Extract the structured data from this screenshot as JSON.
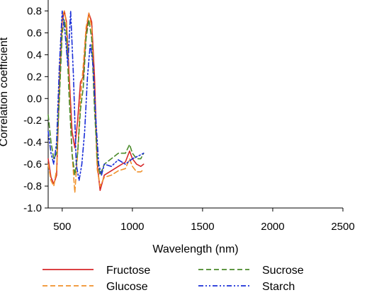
{
  "chart_data": {
    "type": "line",
    "xlabel": "Wavelength (nm)",
    "ylabel": "Correlation coefficient",
    "xlim": [
      400,
      2500
    ],
    "ylim": [
      -1.0,
      0.9
    ],
    "x_ticks": [
      "500",
      "1000",
      "1500",
      "2000",
      "2500"
    ],
    "y_ticks": [
      "-1.0",
      "-0.8",
      "-0.6",
      "-0.4",
      "-0.2",
      "0.0",
      "0.2",
      "0.4",
      "0.6",
      "0.8"
    ],
    "grid": false,
    "legend_position": "bottom",
    "series": [
      {
        "name": "Fructose",
        "color": "#d62728",
        "dash": "solid",
        "points": [
          [
            400,
            -0.55
          ],
          [
            420,
            -0.72
          ],
          [
            440,
            -0.78
          ],
          [
            460,
            -0.7
          ],
          [
            480,
            0.1
          ],
          [
            500,
            0.7
          ],
          [
            515,
            0.8
          ],
          [
            530,
            0.7
          ],
          [
            550,
            0.2
          ],
          [
            570,
            -0.3
          ],
          [
            590,
            -0.45
          ],
          [
            610,
            -0.2
          ],
          [
            630,
            0.15
          ],
          [
            650,
            0.2
          ],
          [
            670,
            0.6
          ],
          [
            690,
            0.78
          ],
          [
            710,
            0.7
          ],
          [
            730,
            0.2
          ],
          [
            750,
            -0.6
          ],
          [
            770,
            -0.84
          ],
          [
            800,
            -0.7
          ],
          [
            850,
            -0.66
          ],
          [
            900,
            -0.62
          ],
          [
            950,
            -0.58
          ],
          [
            980,
            -0.48
          ],
          [
            1000,
            -0.55
          ],
          [
            1030,
            -0.6
          ],
          [
            1060,
            -0.62
          ],
          [
            1080,
            -0.6
          ]
        ]
      },
      {
        "name": "Glucose",
        "color": "#f0912a",
        "dash": "dashed",
        "points": [
          [
            400,
            -0.6
          ],
          [
            420,
            -0.75
          ],
          [
            440,
            -0.8
          ],
          [
            460,
            -0.65
          ],
          [
            480,
            0.2
          ],
          [
            500,
            0.75
          ],
          [
            515,
            0.8
          ],
          [
            530,
            0.68
          ],
          [
            550,
            0.1
          ],
          [
            570,
            -0.5
          ],
          [
            590,
            -0.86
          ],
          [
            610,
            -0.5
          ],
          [
            630,
            0.0
          ],
          [
            650,
            0.3
          ],
          [
            670,
            0.65
          ],
          [
            690,
            0.78
          ],
          [
            710,
            0.65
          ],
          [
            730,
            0.0
          ],
          [
            750,
            -0.65
          ],
          [
            770,
            -0.8
          ],
          [
            800,
            -0.72
          ],
          [
            850,
            -0.7
          ],
          [
            900,
            -0.66
          ],
          [
            950,
            -0.64
          ],
          [
            980,
            -0.55
          ],
          [
            1000,
            -0.62
          ],
          [
            1030,
            -0.67
          ],
          [
            1060,
            -0.67
          ],
          [
            1080,
            -0.65
          ]
        ]
      },
      {
        "name": "Sucrose",
        "color": "#4a8a2a",
        "dash": "dashed",
        "points": [
          [
            400,
            -0.15
          ],
          [
            420,
            -0.4
          ],
          [
            440,
            -0.55
          ],
          [
            460,
            -0.5
          ],
          [
            480,
            0.0
          ],
          [
            500,
            0.6
          ],
          [
            515,
            0.72
          ],
          [
            530,
            0.6
          ],
          [
            550,
            0.0
          ],
          [
            570,
            -0.5
          ],
          [
            590,
            -0.7
          ],
          [
            610,
            -0.5
          ],
          [
            630,
            -0.1
          ],
          [
            650,
            0.1
          ],
          [
            670,
            0.55
          ],
          [
            690,
            0.72
          ],
          [
            710,
            0.55
          ],
          [
            730,
            -0.1
          ],
          [
            750,
            -0.55
          ],
          [
            770,
            -0.7
          ],
          [
            800,
            -0.6
          ],
          [
            850,
            -0.55
          ],
          [
            900,
            -0.5
          ],
          [
            950,
            -0.5
          ],
          [
            980,
            -0.42
          ],
          [
            1000,
            -0.5
          ],
          [
            1030,
            -0.55
          ],
          [
            1060,
            -0.55
          ],
          [
            1080,
            -0.5
          ]
        ]
      },
      {
        "name": "Starch",
        "color": "#1a2ed8",
        "dash": "dashdotdot",
        "points": [
          [
            400,
            -0.3
          ],
          [
            420,
            -0.5
          ],
          [
            440,
            -0.6
          ],
          [
            460,
            -0.4
          ],
          [
            480,
            0.3
          ],
          [
            500,
            0.8
          ],
          [
            520,
            0.6
          ],
          [
            540,
            0.3
          ],
          [
            560,
            0.8
          ],
          [
            580,
            0.2
          ],
          [
            600,
            -0.6
          ],
          [
            620,
            -0.75
          ],
          [
            640,
            -0.6
          ],
          [
            660,
            -0.3
          ],
          [
            680,
            0.2
          ],
          [
            700,
            0.5
          ],
          [
            720,
            0.3
          ],
          [
            740,
            -0.2
          ],
          [
            760,
            -0.6
          ],
          [
            780,
            -0.7
          ],
          [
            800,
            -0.6
          ],
          [
            850,
            -0.62
          ],
          [
            900,
            -0.56
          ],
          [
            950,
            -0.6
          ],
          [
            1000,
            -0.55
          ],
          [
            1050,
            -0.52
          ],
          [
            1080,
            -0.5
          ]
        ]
      }
    ]
  }
}
